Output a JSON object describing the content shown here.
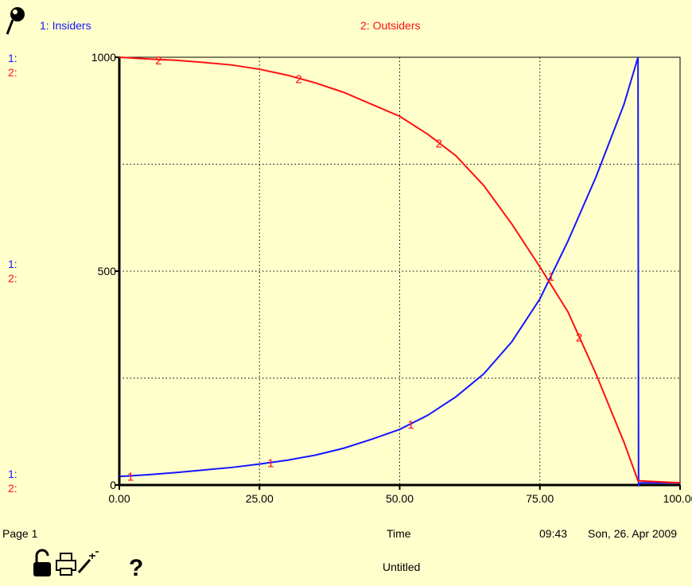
{
  "chart_data": {
    "type": "line",
    "x_label": "Time",
    "x_range": [
      0,
      100
    ],
    "x_ticks": [
      "0.00",
      "25.00",
      "50.00",
      "75.00",
      "100.00"
    ],
    "y_range": [
      0,
      1000
    ],
    "y_ticks": [
      "0",
      "500",
      "1000"
    ],
    "grid": true,
    "legend_placement": "top",
    "series": [
      {
        "name": "1: Insiders",
        "marker": "1",
        "color": "#1515ff",
        "x": [
          0,
          5,
          10,
          15,
          20,
          25,
          30,
          35,
          40,
          45,
          50,
          55,
          60,
          65,
          70,
          75,
          80,
          85,
          90,
          92.5,
          92.6,
          93,
          100
        ],
        "y": [
          20,
          24,
          29,
          35,
          41,
          49,
          58,
          70,
          86,
          107,
          130,
          163,
          206,
          260,
          335,
          435,
          570,
          720,
          890,
          1000,
          0,
          5,
          5
        ]
      },
      {
        "name": "2: Outsiders",
        "marker": "2",
        "color": "#ff1010",
        "x": [
          0,
          5,
          10,
          15,
          20,
          25,
          30,
          35,
          40,
          45,
          50,
          55,
          60,
          65,
          70,
          75,
          80,
          85,
          90,
          92.5,
          100
        ],
        "y": [
          1000,
          996,
          993,
          988,
          982,
          972,
          958,
          940,
          918,
          890,
          862,
          820,
          770,
          700,
          610,
          510,
          405,
          260,
          100,
          10,
          5
        ]
      }
    ]
  },
  "axis_key": {
    "line1": "1:",
    "line2": "2:"
  },
  "footer": {
    "page_label": "Page 1",
    "time_label": "Time",
    "clock": "09:43",
    "date": "Son, 26. Apr 2009",
    "title": "Untitled"
  },
  "toolbar": {
    "help": "?"
  },
  "icons": [
    "pin-icon",
    "lock-icon",
    "print-icon",
    "magic-wand-icon",
    "help-icon"
  ]
}
